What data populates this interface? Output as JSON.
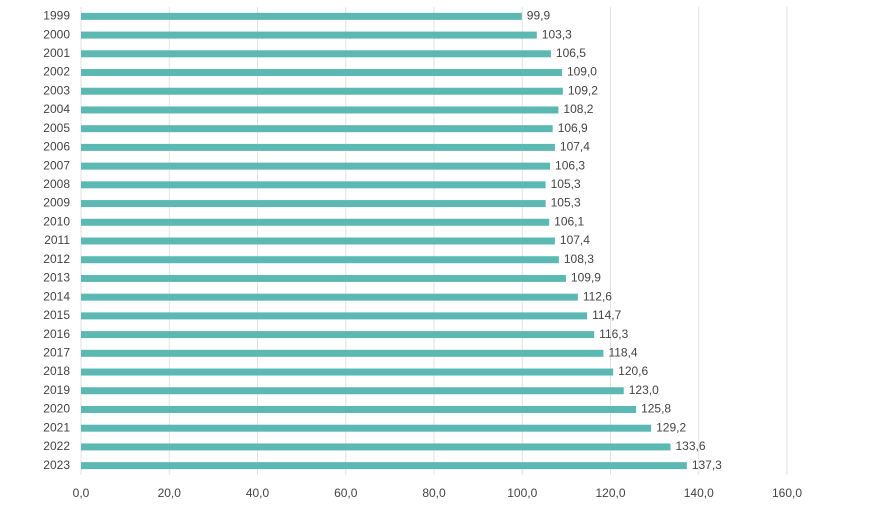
{
  "chart_data": {
    "type": "bar",
    "orientation": "horizontal",
    "color": "#5cb8b2",
    "grid": true,
    "categories": [
      "1999",
      "2000",
      "2001",
      "2002",
      "2003",
      "2004",
      "2005",
      "2006",
      "2007",
      "2008",
      "2009",
      "2010",
      "2011",
      "2012",
      "2013",
      "2014",
      "2015",
      "2016",
      "2017",
      "2018",
      "2019",
      "2020",
      "2021",
      "2022",
      "2023"
    ],
    "values": [
      99.9,
      103.3,
      106.5,
      109.0,
      109.2,
      108.2,
      106.9,
      107.4,
      106.3,
      105.3,
      105.3,
      106.1,
      107.4,
      108.3,
      109.9,
      112.6,
      114.7,
      116.3,
      118.4,
      120.6,
      123.0,
      125.8,
      129.2,
      133.6,
      137.3
    ],
    "value_labels": [
      "99,9",
      "103,3",
      "106,5",
      "109,0",
      "109,2",
      "108,2",
      "106,9",
      "107,4",
      "106,3",
      "105,3",
      "105,3",
      "106,1",
      "107,4",
      "108,3",
      "109,9",
      "112,6",
      "114,7",
      "116,3",
      "118,4",
      "120,6",
      "123,0",
      "125,8",
      "129,2",
      "133,6",
      "137,3"
    ],
    "xlim": [
      0,
      160
    ],
    "xticks": [
      {
        "value": 0,
        "label": "0,0"
      },
      {
        "value": 20,
        "label": "20,0"
      },
      {
        "value": 40,
        "label": "40,0"
      },
      {
        "value": 60,
        "label": "60,0"
      },
      {
        "value": 80,
        "label": "80,0"
      },
      {
        "value": 100,
        "label": "100,0"
      },
      {
        "value": 120,
        "label": "120,0"
      },
      {
        "value": 140,
        "label": "140,0"
      },
      {
        "value": 160,
        "label": "160,0"
      }
    ]
  }
}
